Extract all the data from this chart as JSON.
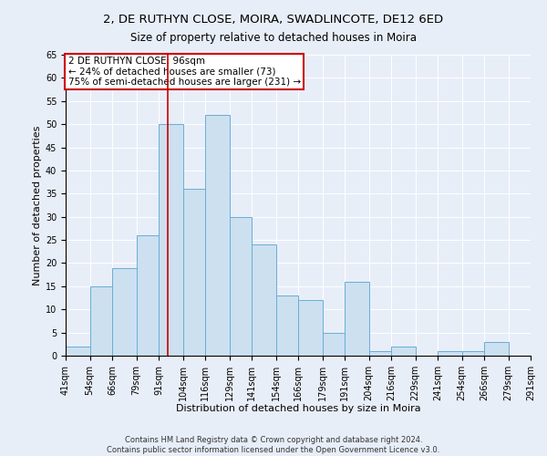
{
  "title1": "2, DE RUTHYN CLOSE, MOIRA, SWADLINCOTE, DE12 6ED",
  "title2": "Size of property relative to detached houses in Moira",
  "xlabel": "Distribution of detached houses by size in Moira",
  "ylabel": "Number of detached properties",
  "bin_labels": [
    "41sqm",
    "54sqm",
    "66sqm",
    "79sqm",
    "91sqm",
    "104sqm",
    "116sqm",
    "129sqm",
    "141sqm",
    "154sqm",
    "166sqm",
    "179sqm",
    "191sqm",
    "204sqm",
    "216sqm",
    "229sqm",
    "241sqm",
    "254sqm",
    "266sqm",
    "279sqm",
    "291sqm"
  ],
  "bin_edges": [
    41,
    54,
    66,
    79,
    91,
    104,
    116,
    129,
    141,
    154,
    166,
    179,
    191,
    204,
    216,
    229,
    241,
    254,
    266,
    279,
    291
  ],
  "values": [
    2,
    15,
    19,
    26,
    50,
    36,
    52,
    30,
    24,
    13,
    12,
    5,
    16,
    1,
    2,
    0,
    1,
    1,
    3,
    0
  ],
  "bar_color": "#cce0f0",
  "bar_edgecolor": "#6aadd5",
  "property_line_x": 96,
  "property_line_color": "#cc0000",
  "annotation_line1": "2 DE RUTHYN CLOSE: 96sqm",
  "annotation_line2": "← 24% of detached houses are smaller (73)",
  "annotation_line3": "75% of semi-detached houses are larger (231) →",
  "annotation_box_color": "#ffffff",
  "annotation_box_edgecolor": "#cc0000",
  "ylim": [
    0,
    65
  ],
  "yticks": [
    0,
    5,
    10,
    15,
    20,
    25,
    30,
    35,
    40,
    45,
    50,
    55,
    60,
    65
  ],
  "bg_color": "#e8eef8",
  "grid_color": "#ffffff",
  "footer1": "Contains HM Land Registry data © Crown copyright and database right 2024.",
  "footer2": "Contains public sector information licensed under the Open Government Licence v3.0.",
  "title1_fontsize": 9.5,
  "title2_fontsize": 8.5,
  "xlabel_fontsize": 8,
  "ylabel_fontsize": 8,
  "tick_fontsize": 7,
  "annotation_fontsize": 7.5,
  "footer_fontsize": 6
}
